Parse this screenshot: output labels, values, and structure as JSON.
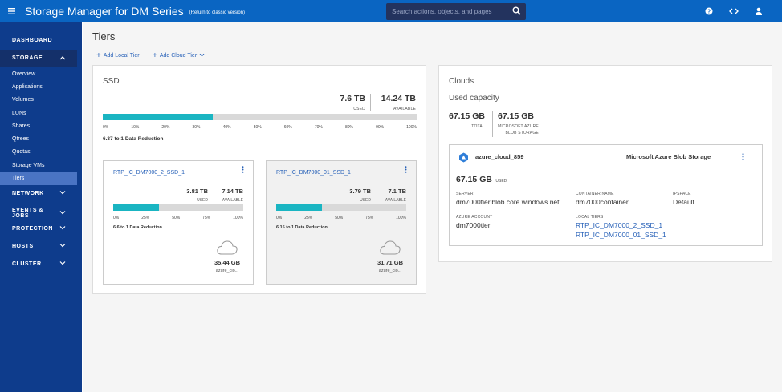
{
  "header": {
    "title": "Storage Manager for DM Series",
    "classic_link": "(Return to classic version)",
    "search_placeholder": "Search actions, objects, and pages"
  },
  "sidebar": {
    "dashboard": "DASHBOARD",
    "storage": "STORAGE",
    "storage_items": [
      "Overview",
      "Applications",
      "Volumes",
      "LUNs",
      "Shares",
      "Qtrees",
      "Quotas",
      "Storage VMs",
      "Tiers"
    ],
    "network": "NETWORK",
    "events_jobs": "EVENTS & JOBS",
    "protection": "PROTECTION",
    "hosts": "HOSTS",
    "cluster": "CLUSTER"
  },
  "page": {
    "title": "Tiers",
    "add_local_tier": "Add Local Tier",
    "add_cloud_tier": "Add Cloud Tier"
  },
  "ssd": {
    "title": "SSD",
    "used_value": "7.6 TB",
    "used_label": "USED",
    "available_value": "14.24 TB",
    "available_label": "AVAILABLE",
    "used_fraction": 0.35,
    "ticks": [
      "0%",
      "10%",
      "20%",
      "30%",
      "40%",
      "50%",
      "60%",
      "70%",
      "80%",
      "90%",
      "100%"
    ],
    "reduction": "6.37 to 1 Data Reduction",
    "tiers": [
      {
        "name": "RTP_IC_DM7000_2_SSD_1",
        "used_value": "3.81 TB",
        "used_label": "USED",
        "available_value": "7.14 TB",
        "available_label": "AVAILABLE",
        "used_fraction": 0.35,
        "ticks": [
          "0%",
          "25%",
          "50%",
          "75%",
          "100%"
        ],
        "reduction": "6.6 to 1 Data Reduction",
        "cloud_value": "35.44 GB",
        "cloud_name": "azure_clo..."
      },
      {
        "name": "RTP_IC_DM7000_01_SSD_1",
        "used_value": "3.79 TB",
        "used_label": "USED",
        "available_value": "7.1 TB",
        "available_label": "AVAILABLE",
        "used_fraction": 0.35,
        "ticks": [
          "0%",
          "25%",
          "50%",
          "75%",
          "100%"
        ],
        "reduction": "6.15 to 1 Data Reduction",
        "cloud_value": "31.71 GB",
        "cloud_name": "azure_clo..."
      }
    ]
  },
  "clouds": {
    "title": "Clouds",
    "used_capacity": "Used capacity",
    "total_value": "67.15 GB",
    "total_label": "TOTAL",
    "azure_value": "67.15 GB",
    "azure_label_1": "MICROSOFT AZURE",
    "azure_label_2": "BLOB STORAGE",
    "cloud": {
      "name": "azure_cloud_859",
      "provider": "Microsoft Azure Blob Storage",
      "used_value": "67.15 GB",
      "used_label": "USED",
      "server_label": "SERVER",
      "server": "dm7000tier.blob.core.windows.net",
      "container_label": "CONTAINER NAME",
      "container": "dm7000container",
      "ipspace_label": "IPSPACE",
      "ipspace": "Default",
      "account_label": "AZURE ACCOUNT",
      "account": "dm7000tier",
      "local_tiers_label": "LOCAL TIERS",
      "local_tiers": [
        "RTP_IC_DM7000_2_SSD_1",
        "RTP_IC_DM7000_01_SSD_1"
      ]
    }
  },
  "colors": {
    "topbar": "#0a65c2",
    "sidebar": "#0e3c8c",
    "active_item": "#4a74c3",
    "bar_fill": "#1ab5c2",
    "link": "#2761b8"
  }
}
